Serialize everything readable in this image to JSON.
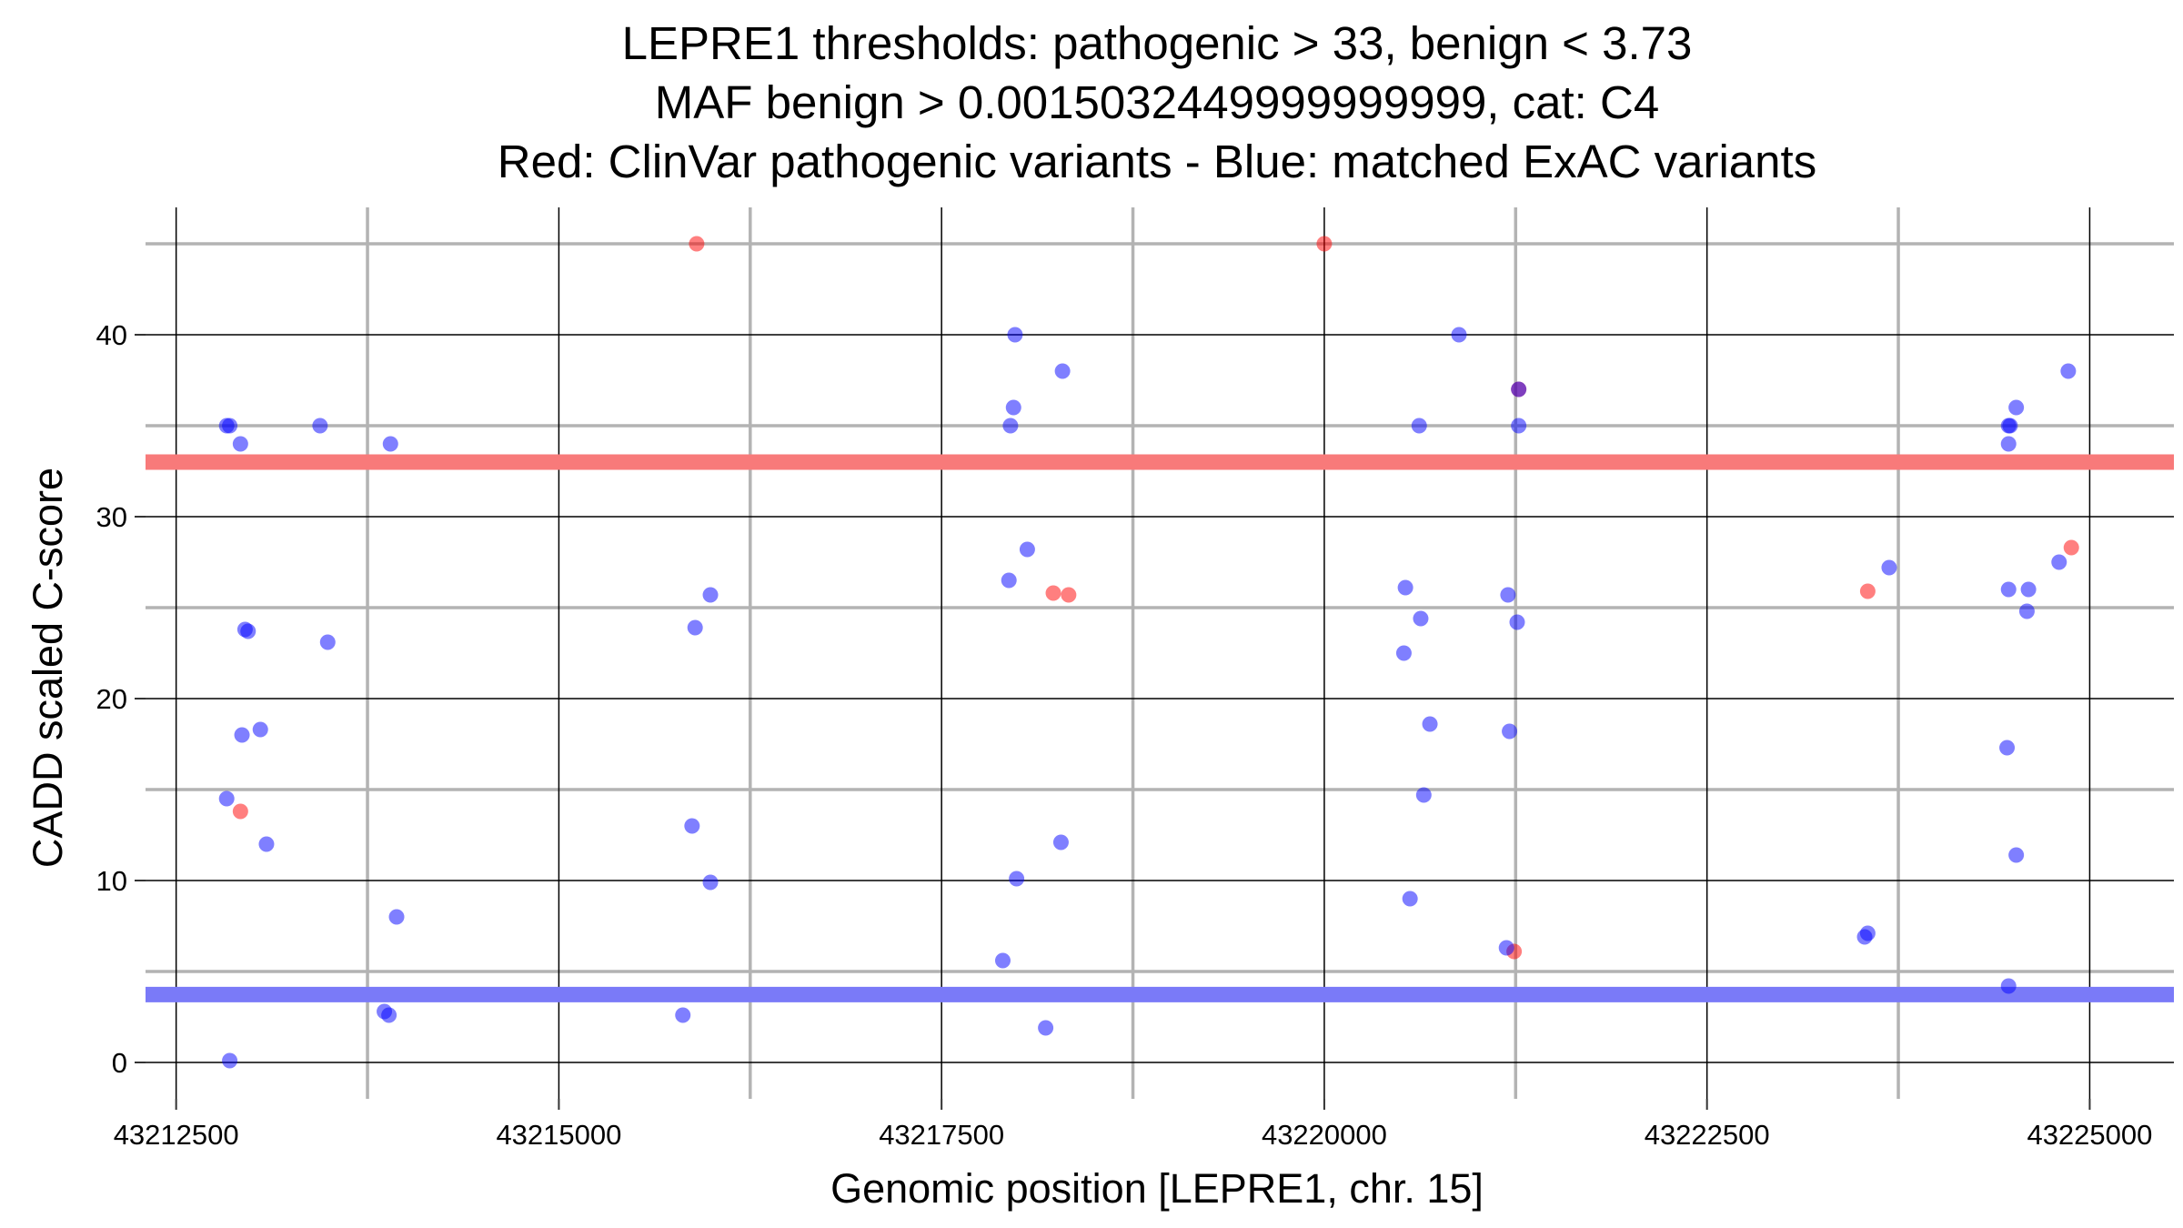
{
  "chart_data": {
    "type": "scatter",
    "title_lines": [
      "LEPRE1 thresholds: pathogenic > 33, benign < 3.73",
      "MAF benign > 0.0015032449999999999, cat: C4",
      "Red: ClinVar pathogenic variants - Blue: matched ExAC variants"
    ],
    "xlabel": "Genomic position [LEPRE1, chr. 15]",
    "ylabel": "CADD scaled C-score",
    "xlim": [
      43212300,
      43225550
    ],
    "ylim": [
      -2,
      47
    ],
    "x_ticks": [
      43212500,
      43215000,
      43217500,
      43220000,
      43222500,
      43225000
    ],
    "x_tick_labels": [
      "43212500",
      "43215000",
      "43217500",
      "43220000",
      "43222500",
      "43225000"
    ],
    "y_ticks": [
      0,
      10,
      20,
      30,
      40
    ],
    "y_tick_labels": [
      "0",
      "10",
      "20",
      "30",
      "40"
    ],
    "x_minor_gridlines": [
      43213750,
      43216250,
      43218750,
      43221250,
      43223750
    ],
    "y_minor_gridlines": [
      5,
      15,
      25,
      35,
      45
    ],
    "grid": true,
    "thresholds": [
      {
        "name": "pathogenic",
        "value": 33,
        "color": "#f87a7a"
      },
      {
        "name": "benign",
        "value": 3.73,
        "color": "#7a7af8"
      }
    ],
    "series": [
      {
        "color": "#ff0000",
        "points": [
          [
            43215900,
            45
          ],
          [
            43220000,
            45
          ],
          [
            43212920,
            13.8
          ],
          [
            43218230,
            25.8
          ],
          [
            43218330,
            25.7
          ],
          [
            43221270,
            37
          ],
          [
            43221240,
            6.1
          ],
          [
            43223550,
            25.9
          ],
          [
            43224880,
            28.3
          ]
        ]
      },
      {
        "color": "#0000ff",
        "points": [
          [
            43212830,
            35
          ],
          [
            43212850,
            35
          ],
          [
            43212920,
            34
          ],
          [
            43212950,
            23.8
          ],
          [
            43212970,
            23.7
          ],
          [
            43213440,
            35
          ],
          [
            43213490,
            23.1
          ],
          [
            43213900,
            34
          ],
          [
            43213940,
            8
          ],
          [
            43213860,
            2.8
          ],
          [
            43213890,
            2.6
          ],
          [
            43212930,
            18
          ],
          [
            43213050,
            18.3
          ],
          [
            43212830,
            14.5
          ],
          [
            43213090,
            12
          ],
          [
            43212850,
            0.1
          ],
          [
            43215890,
            23.9
          ],
          [
            43215990,
            25.7
          ],
          [
            43215870,
            13
          ],
          [
            43215990,
            9.9
          ],
          [
            43215810,
            2.6
          ],
          [
            43217980,
            40
          ],
          [
            43218290,
            38
          ],
          [
            43217970,
            36
          ],
          [
            43217950,
            35
          ],
          [
            43218060,
            28.2
          ],
          [
            43217940,
            26.5
          ],
          [
            43217990,
            10.1
          ],
          [
            43218280,
            12.1
          ],
          [
            43217900,
            5.6
          ],
          [
            43218180,
            1.9
          ],
          [
            43220880,
            40
          ],
          [
            43220620,
            35
          ],
          [
            43221270,
            35
          ],
          [
            43221270,
            37
          ],
          [
            43220530,
            26.1
          ],
          [
            43220630,
            24.4
          ],
          [
            43220520,
            22.5
          ],
          [
            43220690,
            18.6
          ],
          [
            43220650,
            14.7
          ],
          [
            43220560,
            9
          ],
          [
            43221200,
            25.7
          ],
          [
            43221260,
            24.2
          ],
          [
            43221210,
            18.2
          ],
          [
            43221190,
            6.3
          ],
          [
            43223690,
            27.2
          ],
          [
            43223550,
            7.1
          ],
          [
            43223530,
            6.9
          ],
          [
            43224860,
            38
          ],
          [
            43224520,
            36
          ],
          [
            43224470,
            35
          ],
          [
            43224480,
            35
          ],
          [
            43224470,
            34
          ],
          [
            43224470,
            26
          ],
          [
            43224600,
            26
          ],
          [
            43224590,
            24.8
          ],
          [
            43224800,
            27.5
          ],
          [
            43224460,
            17.3
          ],
          [
            43224520,
            11.4
          ],
          [
            43224470,
            4.2
          ]
        ]
      }
    ]
  }
}
